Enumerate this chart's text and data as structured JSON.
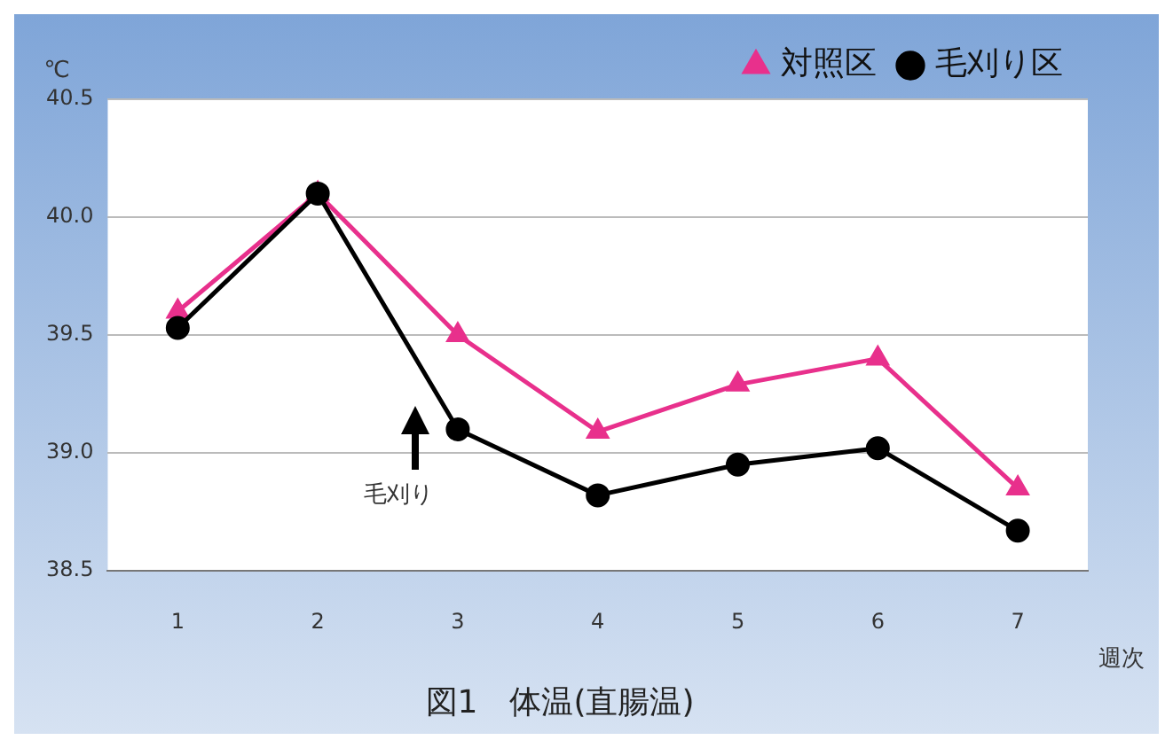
{
  "chart_data": {
    "type": "line",
    "title": "図1　体温(直腸温)",
    "ylabel": "℃",
    "xlabel": "週次",
    "categories": [
      "1",
      "2",
      "3",
      "4",
      "5",
      "6",
      "7"
    ],
    "series": [
      {
        "name": "対照区",
        "color": "#e8308c",
        "marker": "triangle",
        "values": [
          39.6,
          40.1,
          39.5,
          39.09,
          39.29,
          39.4,
          38.85
        ]
      },
      {
        "name": "毛刈り区",
        "color": "#000000",
        "marker": "circle",
        "values": [
          39.53,
          40.1,
          39.1,
          38.82,
          38.95,
          39.02,
          38.67
        ]
      }
    ],
    "ylim": [
      38.5,
      40.5
    ],
    "yticks": [
      38.5,
      {
        "value": 39,
        "label": "39.0"
      },
      39.5,
      {
        "value": 40,
        "label": "40.0"
      },
      40.5
    ],
    "grid": "y",
    "legend": "top right",
    "annotations": [
      "毛刈り"
    ]
  }
}
